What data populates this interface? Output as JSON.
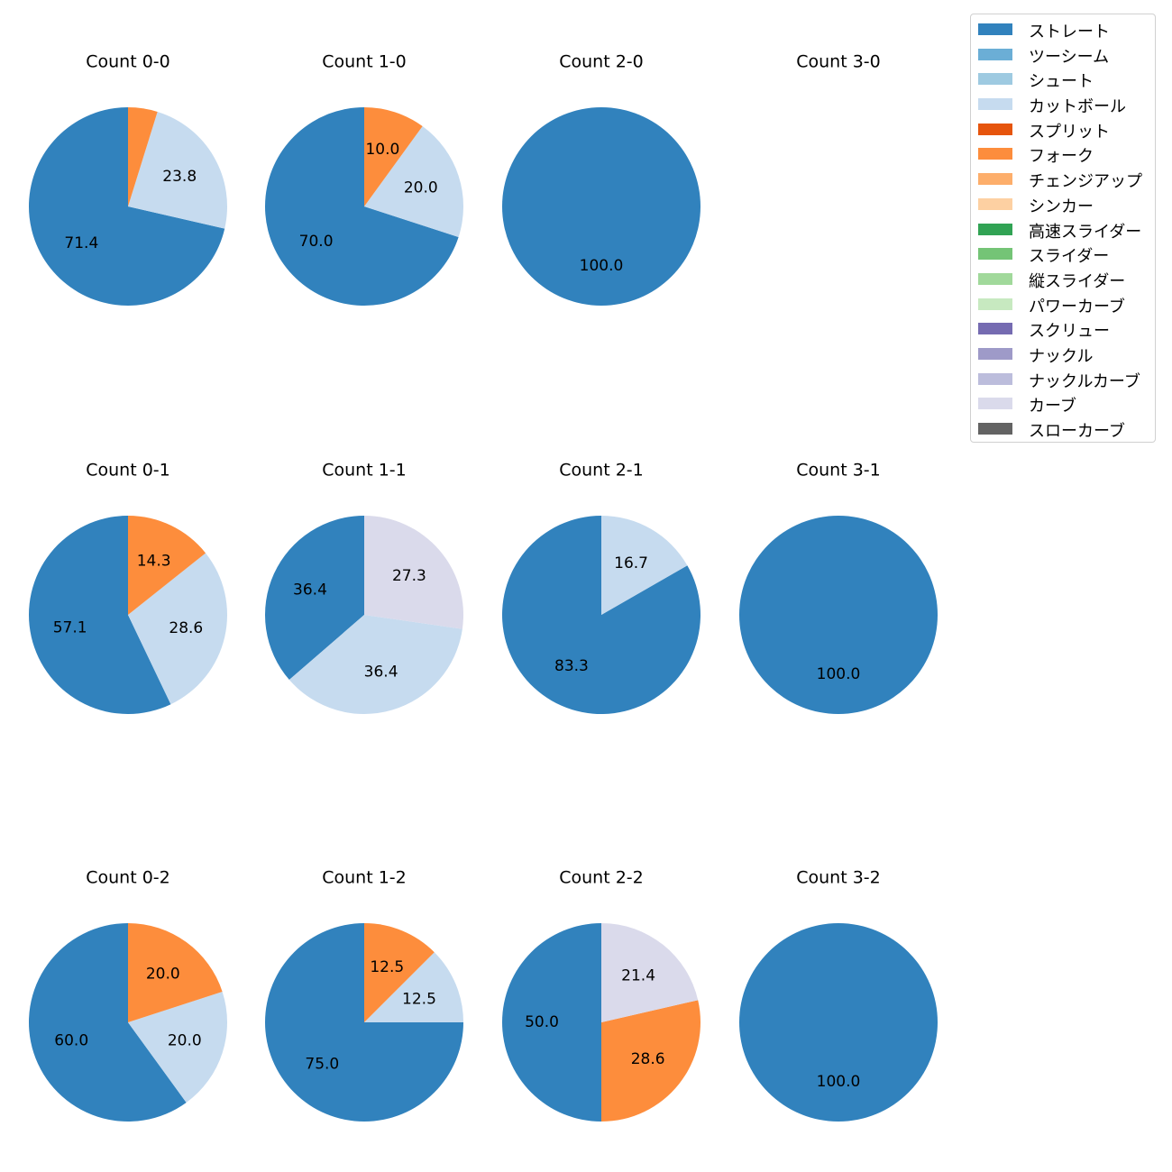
{
  "chart_data": {
    "type": "pie",
    "legend_position": "top-right",
    "categories": [
      "ストレート",
      "ツーシーム",
      "シュート",
      "カットボール",
      "スプリット",
      "フォーク",
      "チェンジアップ",
      "シンカー",
      "高速スライダー",
      "スライダー",
      "縦スライダー",
      "パワーカーブ",
      "スクリュー",
      "ナックル",
      "ナックルカーブ",
      "カーブ",
      "スローカーブ"
    ],
    "colors": [
      "#3182bd",
      "#6baed6",
      "#9ecae1",
      "#c6dbef",
      "#e6550d",
      "#fd8d3c",
      "#fdae6b",
      "#fdd0a2",
      "#31a354",
      "#74c476",
      "#a1d99b",
      "#c7e9c0",
      "#756bb1",
      "#9e9ac8",
      "#bcbddc",
      "#dadaeb",
      "#636363"
    ],
    "pies": [
      {
        "title": "Count 0-0",
        "slices": [
          {
            "category": "ストレート",
            "value": 71.4
          },
          {
            "category": "カットボール",
            "value": 23.8
          },
          {
            "category": "フォーク",
            "value": 4.8
          }
        ],
        "labels": [
          "71.4",
          "23.8",
          ""
        ]
      },
      {
        "title": "Count 1-0",
        "slices": [
          {
            "category": "ストレート",
            "value": 70.0
          },
          {
            "category": "カットボール",
            "value": 20.0
          },
          {
            "category": "フォーク",
            "value": 10.0
          }
        ],
        "labels": [
          "70.0",
          "20.0",
          "10.0"
        ]
      },
      {
        "title": "Count 2-0",
        "slices": [
          {
            "category": "ストレート",
            "value": 100.0
          }
        ],
        "labels": [
          "100.0"
        ]
      },
      {
        "title": "Count 3-0",
        "slices": [],
        "labels": []
      },
      {
        "title": "Count 0-1",
        "slices": [
          {
            "category": "ストレート",
            "value": 57.1
          },
          {
            "category": "カットボール",
            "value": 28.6
          },
          {
            "category": "フォーク",
            "value": 14.3
          }
        ],
        "labels": [
          "57.1",
          "28.6",
          "14.3"
        ]
      },
      {
        "title": "Count 1-1",
        "slices": [
          {
            "category": "ストレート",
            "value": 36.4
          },
          {
            "category": "カットボール",
            "value": 36.4
          },
          {
            "category": "カーブ",
            "value": 27.3
          }
        ],
        "labels": [
          "36.4",
          "36.4",
          "27.3"
        ]
      },
      {
        "title": "Count 2-1",
        "slices": [
          {
            "category": "ストレート",
            "value": 83.3
          },
          {
            "category": "カットボール",
            "value": 16.7
          }
        ],
        "labels": [
          "83.3",
          "16.7"
        ]
      },
      {
        "title": "Count 3-1",
        "slices": [
          {
            "category": "ストレート",
            "value": 100.0
          }
        ],
        "labels": [
          "100.0"
        ]
      },
      {
        "title": "Count 0-2",
        "slices": [
          {
            "category": "ストレート",
            "value": 60.0
          },
          {
            "category": "カットボール",
            "value": 20.0
          },
          {
            "category": "フォーク",
            "value": 20.0
          }
        ],
        "labels": [
          "60.0",
          "20.0",
          "20.0"
        ]
      },
      {
        "title": "Count 1-2",
        "slices": [
          {
            "category": "ストレート",
            "value": 75.0
          },
          {
            "category": "カットボール",
            "value": 12.5
          },
          {
            "category": "フォーク",
            "value": 12.5
          }
        ],
        "labels": [
          "75.0",
          "12.5",
          "12.5"
        ]
      },
      {
        "title": "Count 2-2",
        "slices": [
          {
            "category": "ストレート",
            "value": 50.0
          },
          {
            "category": "フォーク",
            "value": 28.6
          },
          {
            "category": "カーブ",
            "value": 21.4
          }
        ],
        "labels": [
          "50.0",
          "28.6",
          "21.4"
        ]
      },
      {
        "title": "Count 3-2",
        "slices": [
          {
            "category": "ストレート",
            "value": 100.0
          }
        ],
        "labels": [
          "100.0"
        ]
      }
    ]
  }
}
